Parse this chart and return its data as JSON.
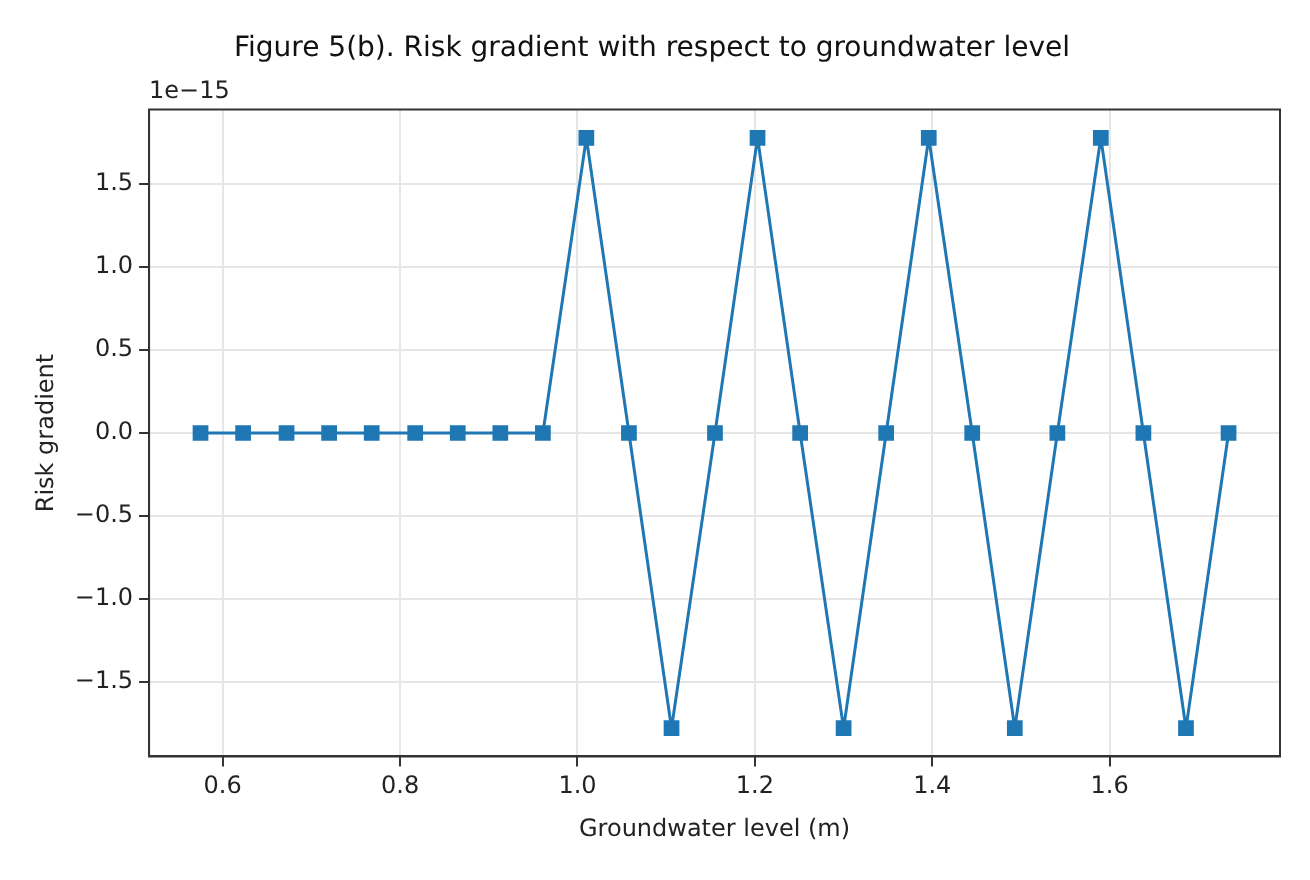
{
  "chart_data": {
    "type": "line",
    "title": "Figure 5(b). Risk gradient with respect to groundwater level",
    "xlabel": "Groundwater level (m)",
    "ylabel": "Risk gradient",
    "annotations": [
      "1e−15"
    ],
    "x": [
      0.575,
      0.623,
      0.672,
      0.72,
      0.768,
      0.817,
      0.865,
      0.913,
      0.961,
      1.01,
      1.058,
      1.106,
      1.155,
      1.203,
      1.251,
      1.3,
      1.348,
      1.396,
      1.445,
      1.493,
      1.541,
      1.59,
      1.638,
      1.686,
      1.734
    ],
    "series": [
      {
        "color": "#1f77b4",
        "values": [
          0,
          0,
          0,
          0,
          0,
          0,
          0,
          0,
          0,
          1.78,
          0,
          -1.78,
          0,
          1.78,
          0,
          -1.78,
          0,
          1.78,
          0,
          -1.78,
          0,
          1.78,
          0,
          -1.78,
          0
        ]
      }
    ],
    "xlim": [
      0.517,
      1.792
    ],
    "xticks": [
      0.6,
      0.8,
      {
        "value": 1,
        "label": "1.0"
      },
      1.2,
      1.4,
      1.6
    ],
    "ylim": [
      -1.95,
      1.95
    ],
    "yticks": [
      {
        "value": -1.5,
        "label": "−1.5"
      },
      {
        "value": -1,
        "label": "−1.0"
      },
      {
        "value": -0.5,
        "label": "−0.5"
      },
      {
        "value": 0,
        "label": "0.0"
      },
      {
        "value": 0.5,
        "label": "0.5"
      },
      {
        "value": 1,
        "label": "1.0"
      },
      {
        "value": 1.5,
        "label": "1.5"
      }
    ],
    "grid": true,
    "marker": "square",
    "line_style": "solid",
    "legend": false
  }
}
